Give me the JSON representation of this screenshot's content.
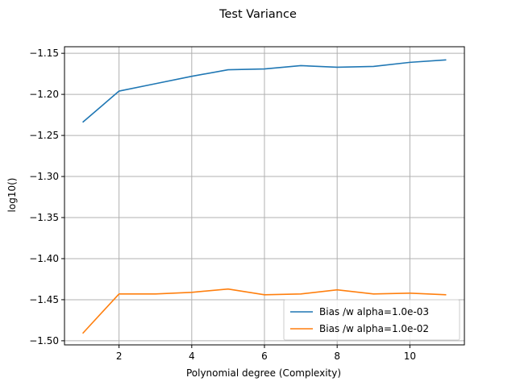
{
  "chart_data": {
    "type": "line",
    "title": "Test Variance",
    "xlabel": "Polynomial degree (Complexity)",
    "ylabel": "log10()",
    "x": [
      1,
      2,
      3,
      4,
      5,
      6,
      7,
      8,
      9,
      10,
      11
    ],
    "xlim": [
      0.5,
      11.5
    ],
    "ylim": [
      -1.505,
      -1.142
    ],
    "xticks": [
      2,
      4,
      6,
      8,
      10
    ],
    "yticks": [
      -1.15,
      -1.2,
      -1.25,
      -1.3,
      -1.35,
      -1.4,
      -1.45,
      -1.5
    ],
    "xtick_labels": [
      "2",
      "4",
      "6",
      "8",
      "10"
    ],
    "ytick_labels": [
      "−1.15",
      "−1.20",
      "−1.25",
      "−1.30",
      "−1.35",
      "−1.40",
      "−1.45",
      "−1.50"
    ],
    "grid": true,
    "legend_position": "lower-right",
    "series": [
      {
        "name": "Bias /w alpha=1.0e-03",
        "color": "#1f77b4",
        "values": [
          -1.234,
          -1.196,
          -1.187,
          -1.178,
          -1.17,
          -1.169,
          -1.165,
          -1.167,
          -1.166,
          -1.161,
          -1.158
        ]
      },
      {
        "name": "Bias /w alpha=1.0e-02",
        "color": "#ff7f0e",
        "values": [
          -1.491,
          -1.443,
          -1.443,
          -1.441,
          -1.437,
          -1.444,
          -1.443,
          -1.438,
          -1.443,
          -1.442,
          -1.444
        ]
      }
    ]
  }
}
